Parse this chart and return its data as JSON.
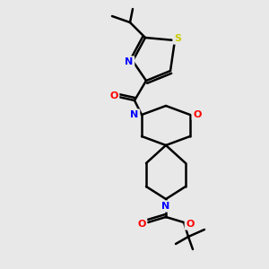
{
  "bg_color": "#e8e8e8",
  "atom_colors": {
    "N": "#0000ff",
    "O": "#ff0000",
    "S": "#cccc00"
  },
  "bond_color": "#000000",
  "bond_width": 1.8,
  "fig_size": [
    3.0,
    3.0
  ],
  "dpi": 100
}
